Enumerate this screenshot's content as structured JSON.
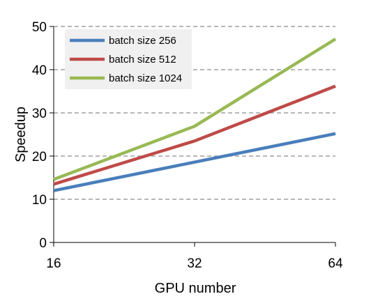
{
  "chart_data": {
    "type": "line",
    "xlabel": "GPU number",
    "ylabel": "Speedup",
    "x": [
      "16",
      "32",
      "64"
    ],
    "ylim": [
      0,
      50
    ],
    "yticks": [
      0,
      10,
      20,
      30,
      40,
      50
    ],
    "grid": "horizontal-dashed",
    "legend_position": "top-left",
    "series": [
      {
        "name": "batch size 256",
        "color": "#4a7ebb",
        "values": [
          12,
          18.6,
          25.2
        ]
      },
      {
        "name": "batch size 512",
        "color": "#be4b48",
        "values": [
          13.5,
          23.5,
          36.2
        ]
      },
      {
        "name": "batch size 1024",
        "color": "#98b954",
        "values": [
          14.6,
          26.9,
          47.1
        ]
      }
    ]
  }
}
